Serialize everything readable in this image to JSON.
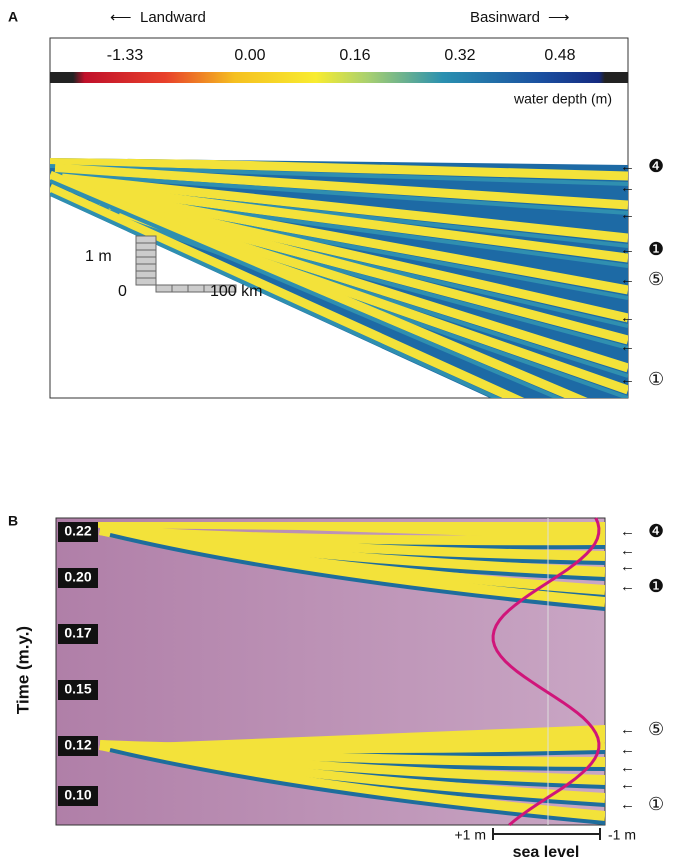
{
  "panel_a": {
    "label": "A",
    "landward": "Landward",
    "basinward": "Basinward",
    "colorbar_ticks": [
      "-1.33",
      "0.00",
      "0.16",
      "0.32",
      "0.48"
    ],
    "colorbar_label": "water depth (m)",
    "scale_vertical": "1 m",
    "scale_zero": "0",
    "scale_horizontal": "100 km",
    "markers": [
      "❹",
      "❶",
      "⑤",
      "①"
    ]
  },
  "panel_b": {
    "label": "B",
    "y_title": "Time (m.y.)",
    "time_labels": [
      "0.22",
      "0.20",
      "0.17",
      "0.15",
      "0.12",
      "0.10"
    ],
    "sea_level_left": "+1 m",
    "sea_level_right": "-1 m",
    "sea_level_title": "sea level",
    "markers": [
      "❹",
      "❶",
      "⑤",
      "①"
    ]
  }
}
